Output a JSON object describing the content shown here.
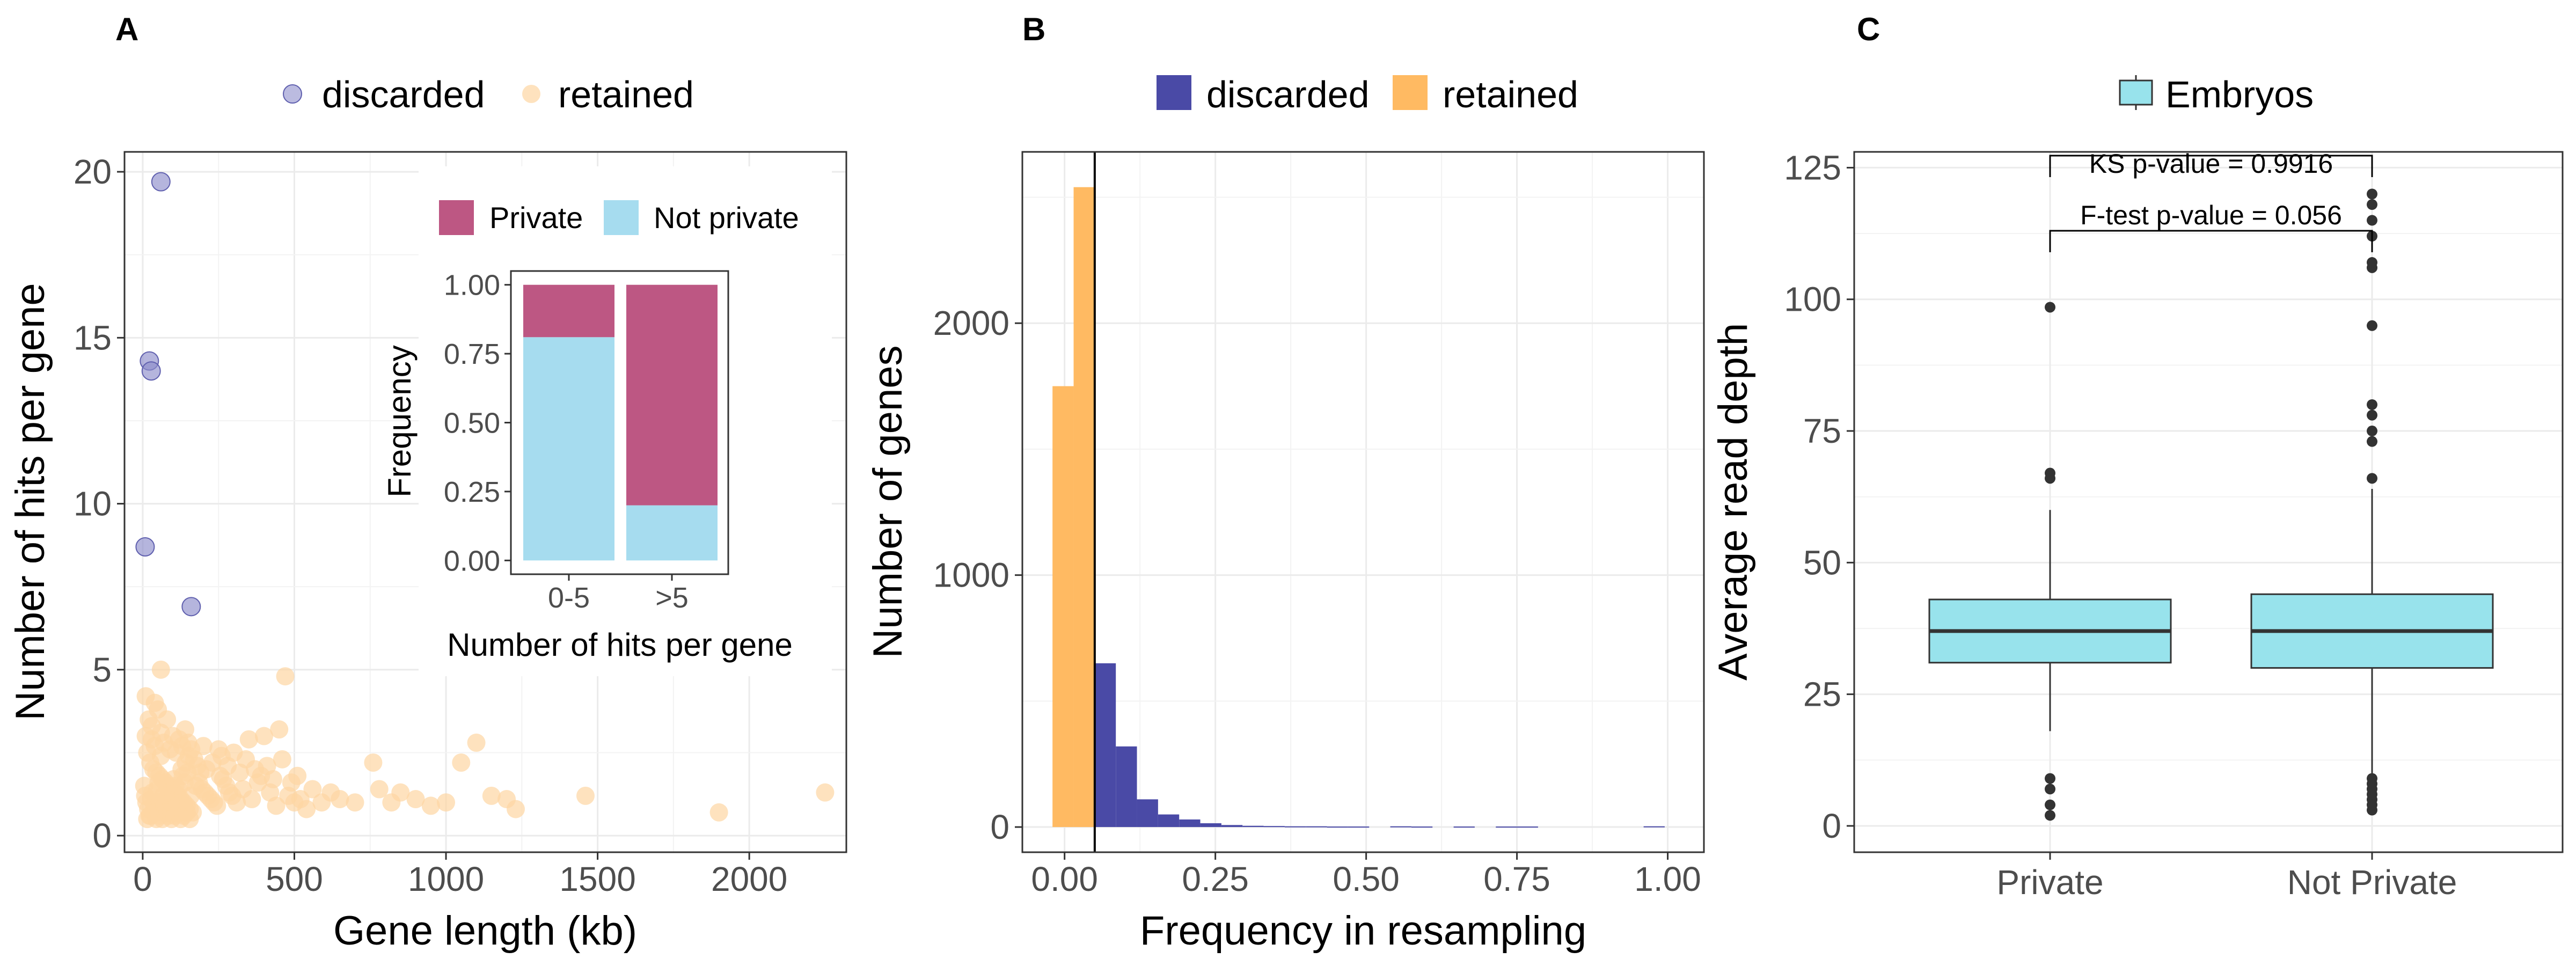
{
  "chart_data": [
    {
      "panel": "A",
      "type": "scatter",
      "xlabel": "Gene length (kb)",
      "ylabel": "Number of hits per gene",
      "xlim": [
        -60,
        2320
      ],
      "ylim": [
        -0.5,
        20.6
      ],
      "xticks": [
        0,
        500,
        1000,
        1500,
        2000
      ],
      "yticks": [
        0,
        5,
        10,
        15,
        20
      ],
      "grid": true,
      "legend": {
        "position": "top",
        "entries": [
          "discarded",
          "retained"
        ]
      },
      "colors": {
        "discarded": "#8e8ecb",
        "retained": "#fdd6a2"
      },
      "series": [
        {
          "name": "discarded",
          "points": [
            [
              60,
              19.7
            ],
            [
              22,
              14.3
            ],
            [
              28,
              14.0
            ],
            [
              8,
              8.7
            ],
            [
              160,
              6.9
            ]
          ]
        },
        {
          "name": "retained",
          "points": [
            [
              10,
              4.2
            ],
            [
              40,
              4.0
            ],
            [
              50,
              3.8
            ],
            [
              80,
              3.5
            ],
            [
              30,
              3.3
            ],
            [
              60,
              3.1
            ],
            [
              100,
              3.0
            ],
            [
              120,
              2.9
            ],
            [
              150,
              2.8
            ],
            [
              200,
              2.7
            ],
            [
              250,
              2.6
            ],
            [
              300,
              2.5
            ],
            [
              350,
              2.9
            ],
            [
              400,
              3.0
            ],
            [
              450,
              3.2
            ],
            [
              470,
              4.8
            ],
            [
              60,
              5.0
            ],
            [
              15,
              2.5
            ],
            [
              25,
              2.2
            ],
            [
              35,
              2.0
            ],
            [
              45,
              1.9
            ],
            [
              55,
              1.8
            ],
            [
              65,
              1.7
            ],
            [
              75,
              1.6
            ],
            [
              85,
              1.5
            ],
            [
              95,
              1.4
            ],
            [
              105,
              1.3
            ],
            [
              115,
              1.2
            ],
            [
              125,
              1.1
            ],
            [
              135,
              1.0
            ],
            [
              145,
              0.9
            ],
            [
              155,
              0.8
            ],
            [
              165,
              0.7
            ],
            [
              175,
              1.5
            ],
            [
              185,
              1.6
            ],
            [
              195,
              1.4
            ],
            [
              205,
              1.3
            ],
            [
              215,
              1.2
            ],
            [
              225,
              1.1
            ],
            [
              235,
              1.0
            ],
            [
              245,
              0.9
            ],
            [
              255,
              1.8
            ],
            [
              265,
              1.7
            ],
            [
              275,
              1.5
            ],
            [
              285,
              1.3
            ],
            [
              295,
              1.2
            ],
            [
              310,
              1.0
            ],
            [
              330,
              1.4
            ],
            [
              360,
              1.1
            ],
            [
              380,
              1.6
            ],
            [
              420,
              1.3
            ],
            [
              440,
              0.9
            ],
            [
              480,
              1.2
            ],
            [
              500,
              1.0
            ],
            [
              520,
              1.1
            ],
            [
              540,
              0.8
            ],
            [
              560,
              1.4
            ],
            [
              590,
              1.0
            ],
            [
              620,
              1.3
            ],
            [
              650,
              1.1
            ],
            [
              700,
              1.0
            ],
            [
              760,
              2.2
            ],
            [
              780,
              1.4
            ],
            [
              820,
              1.0
            ],
            [
              850,
              1.3
            ],
            [
              900,
              1.1
            ],
            [
              950,
              0.9
            ],
            [
              1000,
              1.0
            ],
            [
              1050,
              2.2
            ],
            [
              1100,
              2.8
            ],
            [
              1150,
              1.2
            ],
            [
              1200,
              1.1
            ],
            [
              1230,
              0.8
            ],
            [
              1460,
              1.2
            ],
            [
              1900,
              0.7
            ],
            [
              2250,
              1.3
            ],
            [
              5,
              1.5
            ],
            [
              8,
              1.2
            ],
            [
              12,
              1.0
            ],
            [
              18,
              0.8
            ],
            [
              22,
              0.6
            ],
            [
              28,
              1.1
            ],
            [
              32,
              1.3
            ],
            [
              38,
              0.9
            ],
            [
              42,
              0.7
            ],
            [
              48,
              1.4
            ],
            [
              52,
              1.6
            ],
            [
              58,
              1.0
            ],
            [
              62,
              0.8
            ],
            [
              68,
              1.2
            ],
            [
              72,
              0.9
            ],
            [
              78,
              1.1
            ],
            [
              82,
              0.7
            ],
            [
              88,
              1.3
            ],
            [
              92,
              1.0
            ],
            [
              98,
              0.8
            ],
            [
              102,
              1.7
            ],
            [
              108,
              1.5
            ],
            [
              112,
              0.9
            ],
            [
              118,
              1.4
            ],
            [
              128,
              2.0
            ],
            [
              132,
              1.8
            ],
            [
              138,
              1.6
            ],
            [
              142,
              2.2
            ],
            [
              148,
              1.9
            ],
            [
              152,
              2.4
            ],
            [
              158,
              1.2
            ],
            [
              170,
              2.3
            ],
            [
              180,
              2.1
            ],
            [
              190,
              1.9
            ],
            [
              210,
              2.0
            ],
            [
              230,
              2.2
            ],
            [
              260,
              2.4
            ],
            [
              280,
              2.1
            ],
            [
              320,
              1.9
            ],
            [
              340,
              2.3
            ],
            [
              370,
              2.0
            ],
            [
              390,
              1.8
            ],
            [
              410,
              2.1
            ],
            [
              430,
              1.7
            ],
            [
              460,
              2.3
            ],
            [
              490,
              1.6
            ],
            [
              510,
              1.8
            ],
            [
              20,
              3.5
            ],
            [
              70,
              2.8
            ],
            [
              90,
              2.6
            ],
            [
              110,
              2.5
            ],
            [
              130,
              2.7
            ],
            [
              140,
              3.2
            ],
            [
              160,
              2.6
            ],
            [
              60,
              2.4
            ],
            [
              40,
              2.7
            ],
            [
              30,
              2.9
            ],
            [
              10,
              3.0
            ],
            [
              15,
              0.5
            ],
            [
              25,
              0.6
            ],
            [
              35,
              0.7
            ],
            [
              45,
              0.5
            ],
            [
              55,
              0.6
            ],
            [
              65,
              0.5
            ],
            [
              75,
              0.7
            ],
            [
              85,
              0.6
            ],
            [
              95,
              0.5
            ],
            [
              105,
              0.6
            ],
            [
              115,
              0.7
            ],
            [
              125,
              0.5
            ],
            [
              135,
              0.6
            ],
            [
              145,
              0.7
            ],
            [
              155,
              0.5
            ]
          ]
        }
      ],
      "inset": {
        "type": "stacked-bar",
        "categories": [
          "0-5",
          ">5"
        ],
        "series": [
          {
            "name": "Private",
            "values": [
              0.19,
              0.8
            ]
          },
          {
            "name": "Not private",
            "values": [
              0.81,
              0.2
            ]
          }
        ],
        "xlabel": "Number of hits per gene",
        "ylabel": "Frequency",
        "ylim": [
          0,
          1
        ],
        "yticks": [
          "0.00",
          "0.25",
          "0.50",
          "0.75",
          "1.00"
        ],
        "legend": {
          "position": "top",
          "entries": [
            "Private",
            "Not private"
          ]
        },
        "colors": {
          "Private": "#bd5783",
          "Not private": "#a6dcef"
        }
      }
    },
    {
      "panel": "B",
      "type": "bar",
      "subtype": "histogram",
      "xlabel": "Frequency in resampling",
      "ylabel": "Number of genes",
      "xlim": [
        -0.07,
        1.06
      ],
      "ylim": [
        -100,
        2680
      ],
      "xticks": [
        "0.00",
        "0.25",
        "0.50",
        "0.75",
        "1.00"
      ],
      "yticks": [
        0,
        1000,
        2000
      ],
      "grid": true,
      "vline": 0.05,
      "bin_width": 0.035,
      "legend": {
        "position": "top",
        "entries": [
          "discarded",
          "retained"
        ]
      },
      "colors": {
        "discarded": "#4a4aa6",
        "retained": "#ffba62"
      },
      "bins": [
        {
          "start": -0.02,
          "value": 1750,
          "group": "retained"
        },
        {
          "start": 0.015,
          "value": 2540,
          "group": "retained"
        },
        {
          "start": 0.05,
          "value": 650,
          "group": "discarded"
        },
        {
          "start": 0.085,
          "value": 320,
          "group": "discarded"
        },
        {
          "start": 0.12,
          "value": 110,
          "group": "discarded"
        },
        {
          "start": 0.155,
          "value": 50,
          "group": "discarded"
        },
        {
          "start": 0.19,
          "value": 30,
          "group": "discarded"
        },
        {
          "start": 0.225,
          "value": 15,
          "group": "discarded"
        },
        {
          "start": 0.26,
          "value": 8,
          "group": "discarded"
        },
        {
          "start": 0.295,
          "value": 5,
          "group": "discarded"
        },
        {
          "start": 0.33,
          "value": 4,
          "group": "discarded"
        },
        {
          "start": 0.365,
          "value": 3,
          "group": "discarded"
        },
        {
          "start": 0.4,
          "value": 3,
          "group": "discarded"
        },
        {
          "start": 0.435,
          "value": 2,
          "group": "discarded"
        },
        {
          "start": 0.47,
          "value": 2,
          "group": "discarded"
        },
        {
          "start": 0.54,
          "value": 3,
          "group": "discarded"
        },
        {
          "start": 0.575,
          "value": 2,
          "group": "discarded"
        },
        {
          "start": 0.645,
          "value": 2,
          "group": "discarded"
        },
        {
          "start": 0.715,
          "value": 2,
          "group": "discarded"
        },
        {
          "start": 0.75,
          "value": 2,
          "group": "discarded"
        },
        {
          "start": 0.96,
          "value": 3,
          "group": "discarded"
        }
      ]
    },
    {
      "panel": "C",
      "type": "box",
      "xlabel": "",
      "ylabel": "Average read depth",
      "categories": [
        "Private",
        "Not Private"
      ],
      "ylim": [
        -5,
        128
      ],
      "yticks": [
        0,
        25,
        50,
        75,
        100,
        125
      ],
      "grid": true,
      "legend": {
        "position": "top",
        "entries": [
          "Embryos"
        ]
      },
      "colors": {
        "box": "#98e3ec"
      },
      "boxes": [
        {
          "category": "Private",
          "q1": 31,
          "median": 37,
          "q3": 43,
          "lower": 18,
          "upper": 60,
          "outliers": [
            98.5,
            67,
            66,
            9,
            7,
            4,
            2
          ]
        },
        {
          "category": "Not Private",
          "q1": 30,
          "median": 37,
          "q3": 44,
          "lower": 10,
          "upper": 64,
          "outliers": [
            120,
            118,
            115,
            112,
            107,
            106,
            95,
            80,
            78,
            75,
            73,
            66,
            9,
            8,
            7,
            6,
            5,
            4,
            3
          ]
        }
      ],
      "annotations": [
        "KS p-value = 0.9916",
        "F-test p-value = 0.056"
      ]
    }
  ]
}
